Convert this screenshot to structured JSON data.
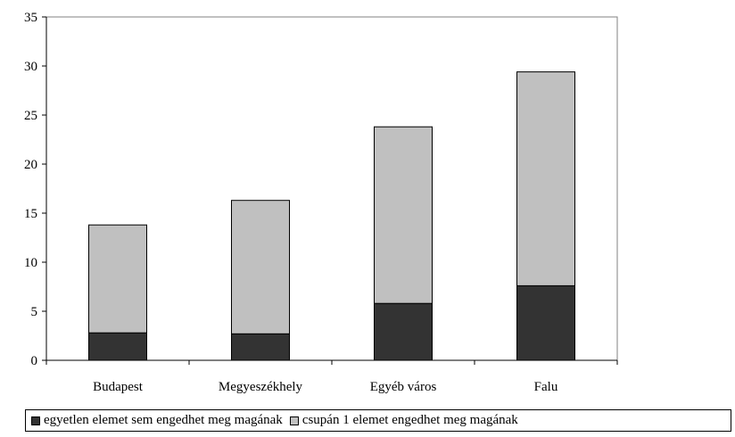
{
  "chart_data": {
    "type": "bar",
    "stacked": true,
    "categories": [
      "Budapest",
      "Megyeszékhely",
      "Egyéb város",
      "Falu"
    ],
    "series": [
      {
        "name": "egyetlen elemet sem engedhet meg magának",
        "color": "#333333",
        "values": [
          2.8,
          2.7,
          5.8,
          7.6
        ]
      },
      {
        "name": "csupán 1 elemet engedhet meg magának",
        "color": "#c0c0c0",
        "values": [
          11.0,
          13.6,
          18.0,
          21.8
        ]
      }
    ],
    "ylim": [
      0,
      35
    ],
    "yticks": [
      "0",
      "5",
      "10",
      "15",
      "20",
      "25",
      "30",
      "35"
    ],
    "grid": false,
    "legend_position": "bottom"
  }
}
